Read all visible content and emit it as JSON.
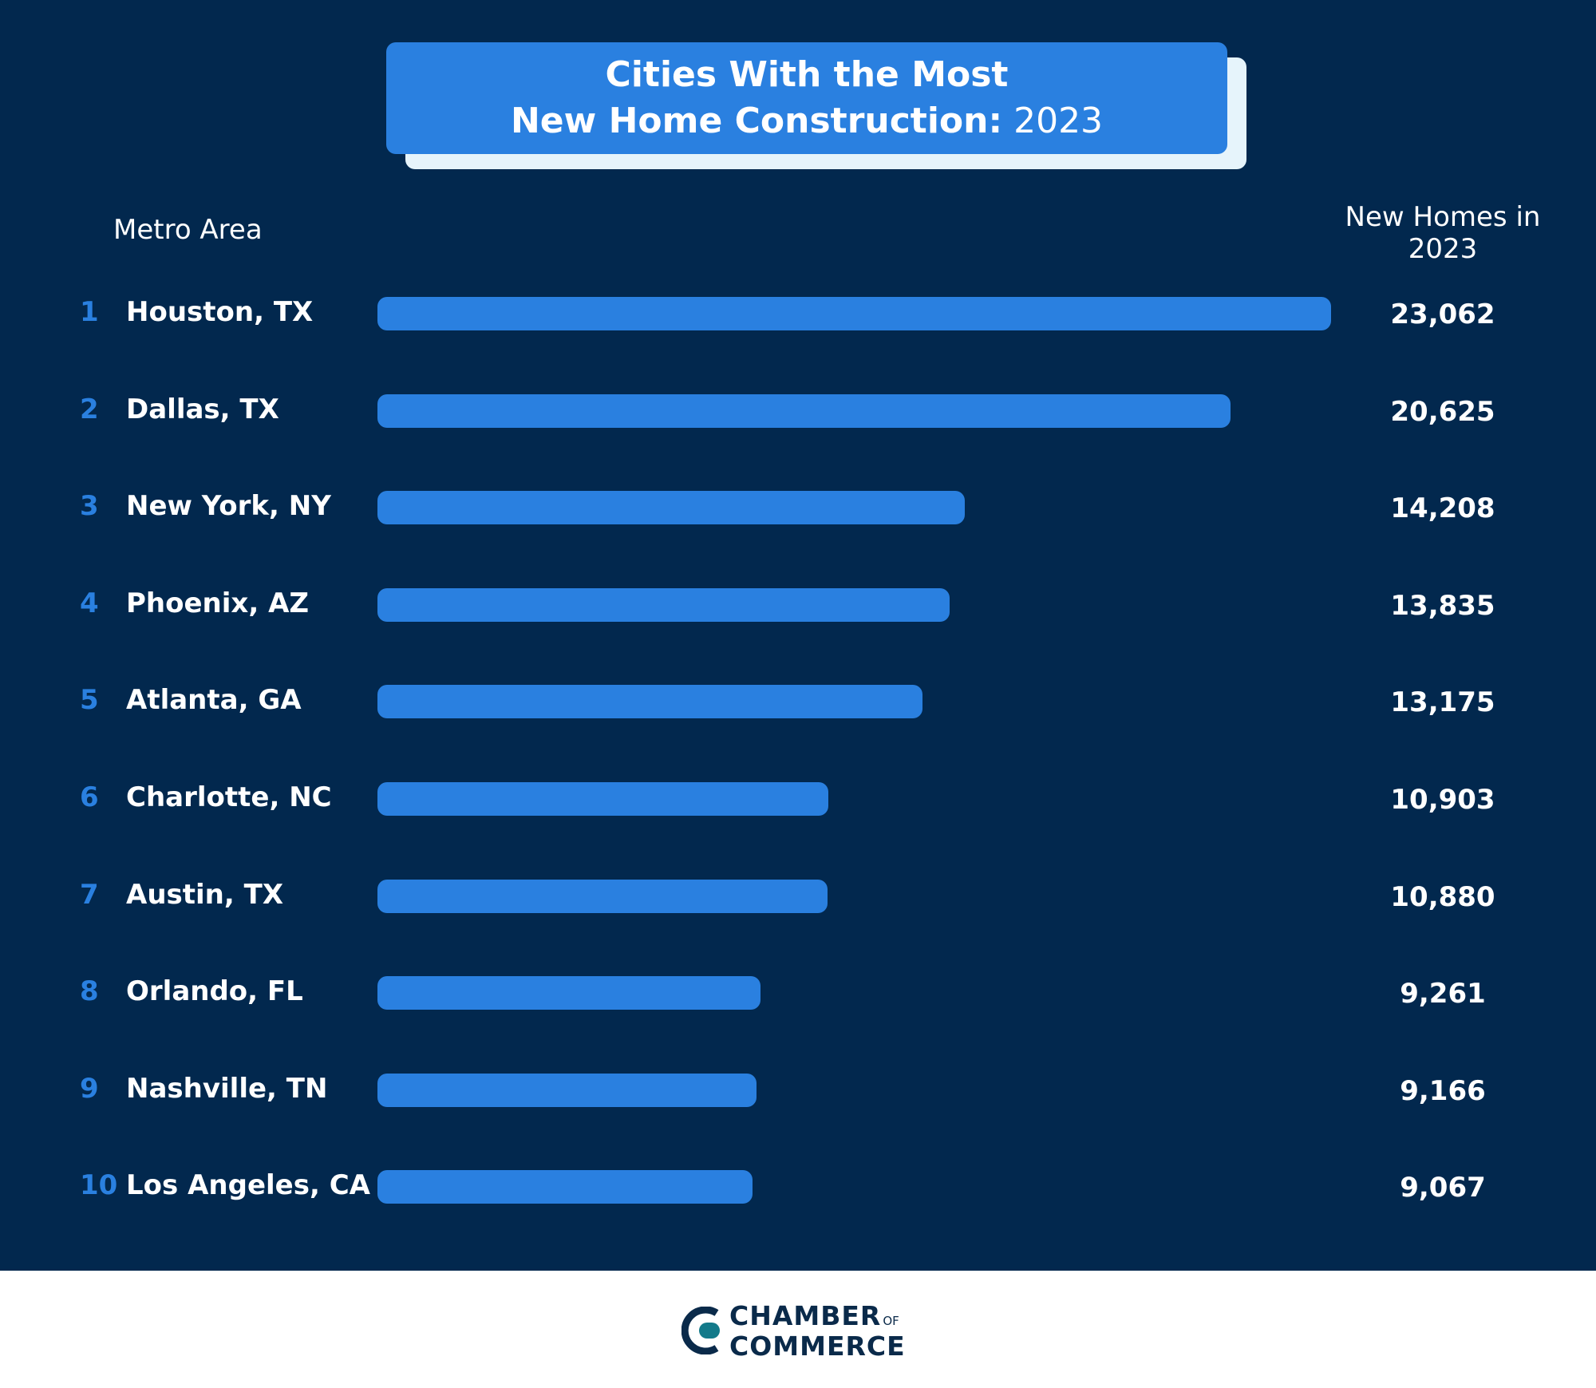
{
  "chart_data": {
    "type": "bar",
    "orientation": "horizontal",
    "title_line1": "Cities With the Most",
    "title_line2_bold": "New Home Construction:",
    "title_line2_year": "2023",
    "xlabel": "New Homes in 2023",
    "ylabel": "Metro Area",
    "ranks": [
      "1",
      "2",
      "3",
      "4",
      "5",
      "6",
      "7",
      "8",
      "9",
      "10"
    ],
    "categories": [
      "Houston, TX",
      "Dallas, TX",
      "New York, NY",
      "Phoenix, AZ",
      "Atlanta, GA",
      "Charlotte, NC",
      "Austin, TX",
      "Orlando, FL",
      "Nashville, TN",
      "Los Angeles, CA"
    ],
    "values": [
      23062,
      20625,
      14208,
      13835,
      13175,
      10903,
      10880,
      9261,
      9166,
      9067
    ],
    "value_labels": [
      "23,062",
      "20,625",
      "14,208",
      "13,835",
      "13,175",
      "10,903",
      "10,880",
      "9,261",
      "9,166",
      "9,067"
    ],
    "xlim": [
      0,
      23062
    ],
    "grid": false
  },
  "header": {
    "left_label": "Metro Area",
    "right_label": "New Homes in 2023"
  },
  "colors": {
    "background": "#02284e",
    "bar": "#2a80e0",
    "rank": "#2a80e0",
    "text": "#ffffff",
    "title_box": "#2a80e0",
    "title_shadow": "#e6f4fb"
  },
  "footer": {
    "logo_line1": "CHAMBER",
    "logo_of": "OF",
    "logo_line2": "COMMERCE"
  }
}
